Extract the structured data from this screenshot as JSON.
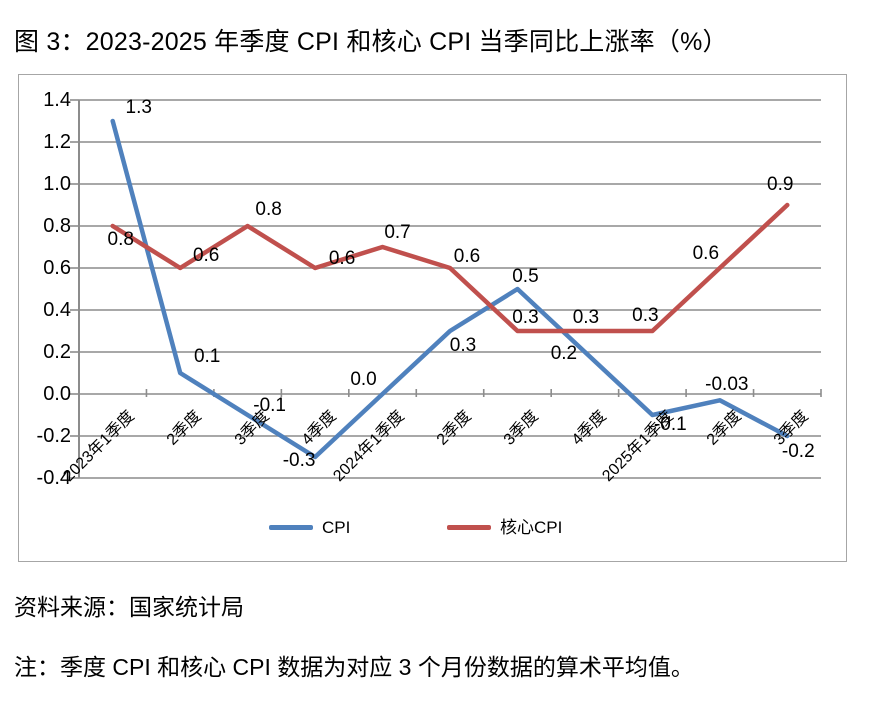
{
  "title": "图 3：2023-2025 年季度 CPI 和核心 CPI 当季同比上涨率（%）",
  "source": "资料来源：国家统计局",
  "note": "注：季度 CPI 和核心 CPI 数据为对应 3 个月份数据的算术平均值。",
  "colors": {
    "cpi_line": "#4F81BD",
    "core_cpi_line": "#C0504D",
    "gridline": "#8C8C8C",
    "box_border": "#A6A6A6",
    "text": "#000000"
  },
  "chart_data": {
    "type": "line",
    "title": "图 3：2023-2025 年季度 CPI 和核心 CPI 当季同比上涨率（%）",
    "categories": [
      "2023年1季度",
      "2季度",
      "3季度",
      "4季度",
      "2024年1季度",
      "2季度",
      "3季度",
      "4季度",
      "2025年1季度",
      "2季度",
      "3季度"
    ],
    "series": [
      {
        "name": "CPI",
        "color": "#4F81BD",
        "values": [
          1.3,
          0.1,
          -0.1,
          -0.3,
          0.0,
          0.3,
          0.5,
          0.2,
          -0.1,
          -0.03,
          -0.2
        ],
        "labels": [
          "1.3",
          "0.1",
          "-0.1",
          "-0.3",
          "0.0",
          "0.3",
          "0.5",
          "0.2",
          "-0.1",
          "-0.03",
          "-0.2"
        ],
        "label_offsets": [
          [
            26,
            -13
          ],
          [
            27,
            -16
          ],
          [
            22,
            -9
          ],
          [
            -16,
            4
          ],
          [
            -19,
            -14
          ],
          [
            13,
            15
          ],
          [
            8,
            -12
          ],
          [
            -21,
            2
          ],
          [
            18,
            10
          ],
          [
            7,
            -15
          ],
          [
            11,
            16
          ]
        ]
      },
      {
        "name": "核心CPI",
        "color": "#C0504D",
        "values": [
          0.8,
          0.6,
          0.8,
          0.6,
          0.7,
          0.6,
          0.3,
          0.3,
          0.3,
          0.6,
          0.9
        ],
        "labels": [
          "0.8",
          "0.6",
          "0.8",
          "0.6",
          "0.7",
          "0.6",
          "0.3",
          "0.3",
          "0.3",
          "0.6",
          "0.9"
        ],
        "label_offsets": [
          [
            8,
            14
          ],
          [
            26,
            -12
          ],
          [
            21,
            -16
          ],
          [
            27,
            -9
          ],
          [
            15,
            -14
          ],
          [
            17,
            -11
          ],
          [
            8,
            -13
          ],
          [
            1,
            -13
          ],
          [
            -7,
            -15
          ],
          [
            -14,
            -14
          ],
          [
            -7,
            -20
          ]
        ]
      }
    ],
    "ylim": [
      -0.4,
      1.4
    ],
    "ytick_step": 0.2,
    "yticks": [
      "1.4",
      "1.2",
      "1.0",
      "0.8",
      "0.6",
      "0.4",
      "0.2",
      "0.0",
      "-0.2",
      "-0.4"
    ],
    "xlabel": "",
    "ylabel": "",
    "grid": true,
    "legend_position": "bottom"
  }
}
